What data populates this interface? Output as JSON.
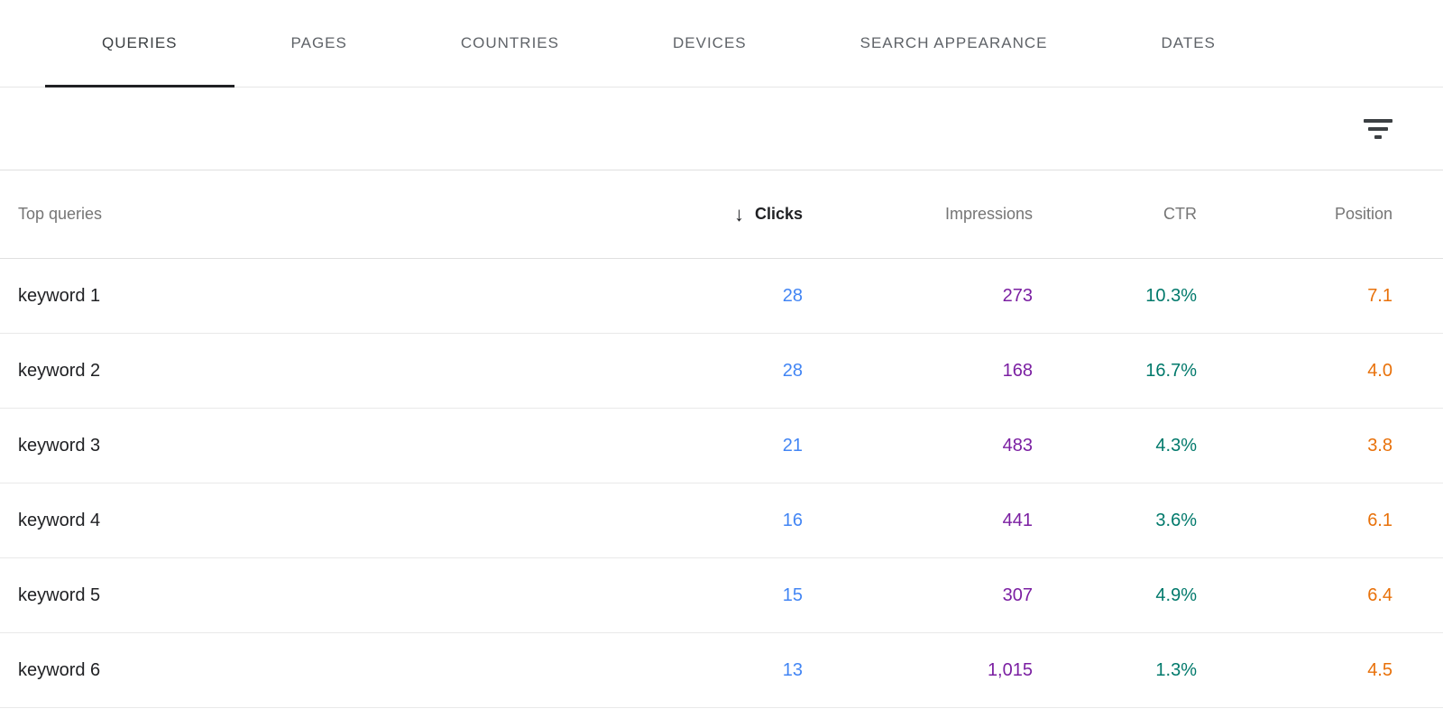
{
  "tabs": [
    {
      "label": "QUERIES",
      "active": true
    },
    {
      "label": "PAGES",
      "active": false
    },
    {
      "label": "COUNTRIES",
      "active": false
    },
    {
      "label": "DEVICES",
      "active": false
    },
    {
      "label": "SEARCH APPEARANCE",
      "active": false
    },
    {
      "label": "DATES",
      "active": false
    }
  ],
  "toolbar": {
    "filter_icon": "filter-list-icon"
  },
  "table": {
    "query_header": "Top queries",
    "sort_icon": "↓",
    "sort_column": "Clicks",
    "sort_direction": "descending",
    "columns": {
      "clicks": "Clicks",
      "impressions": "Impressions",
      "ctr": "CTR",
      "position": "Position"
    },
    "rows": [
      {
        "query": "keyword 1",
        "clicks": "28",
        "impressions": "273",
        "ctr": "10.3%",
        "position": "7.1"
      },
      {
        "query": "keyword 2",
        "clicks": "28",
        "impressions": "168",
        "ctr": "16.7%",
        "position": "4.0"
      },
      {
        "query": "keyword 3",
        "clicks": "21",
        "impressions": "483",
        "ctr": "4.3%",
        "position": "3.8"
      },
      {
        "query": "keyword 4",
        "clicks": "16",
        "impressions": "441",
        "ctr": "3.6%",
        "position": "6.1"
      },
      {
        "query": "keyword 5",
        "clicks": "15",
        "impressions": "307",
        "ctr": "4.9%",
        "position": "6.4"
      },
      {
        "query": "keyword 6",
        "clicks": "13",
        "impressions": "1,015",
        "ctr": "1.3%",
        "position": "4.5"
      }
    ]
  },
  "colors": {
    "clicks": "#4285f4",
    "impressions": "#7b1fa2",
    "ctr": "#00796b",
    "position": "#e8710a",
    "accent": "#202124"
  }
}
